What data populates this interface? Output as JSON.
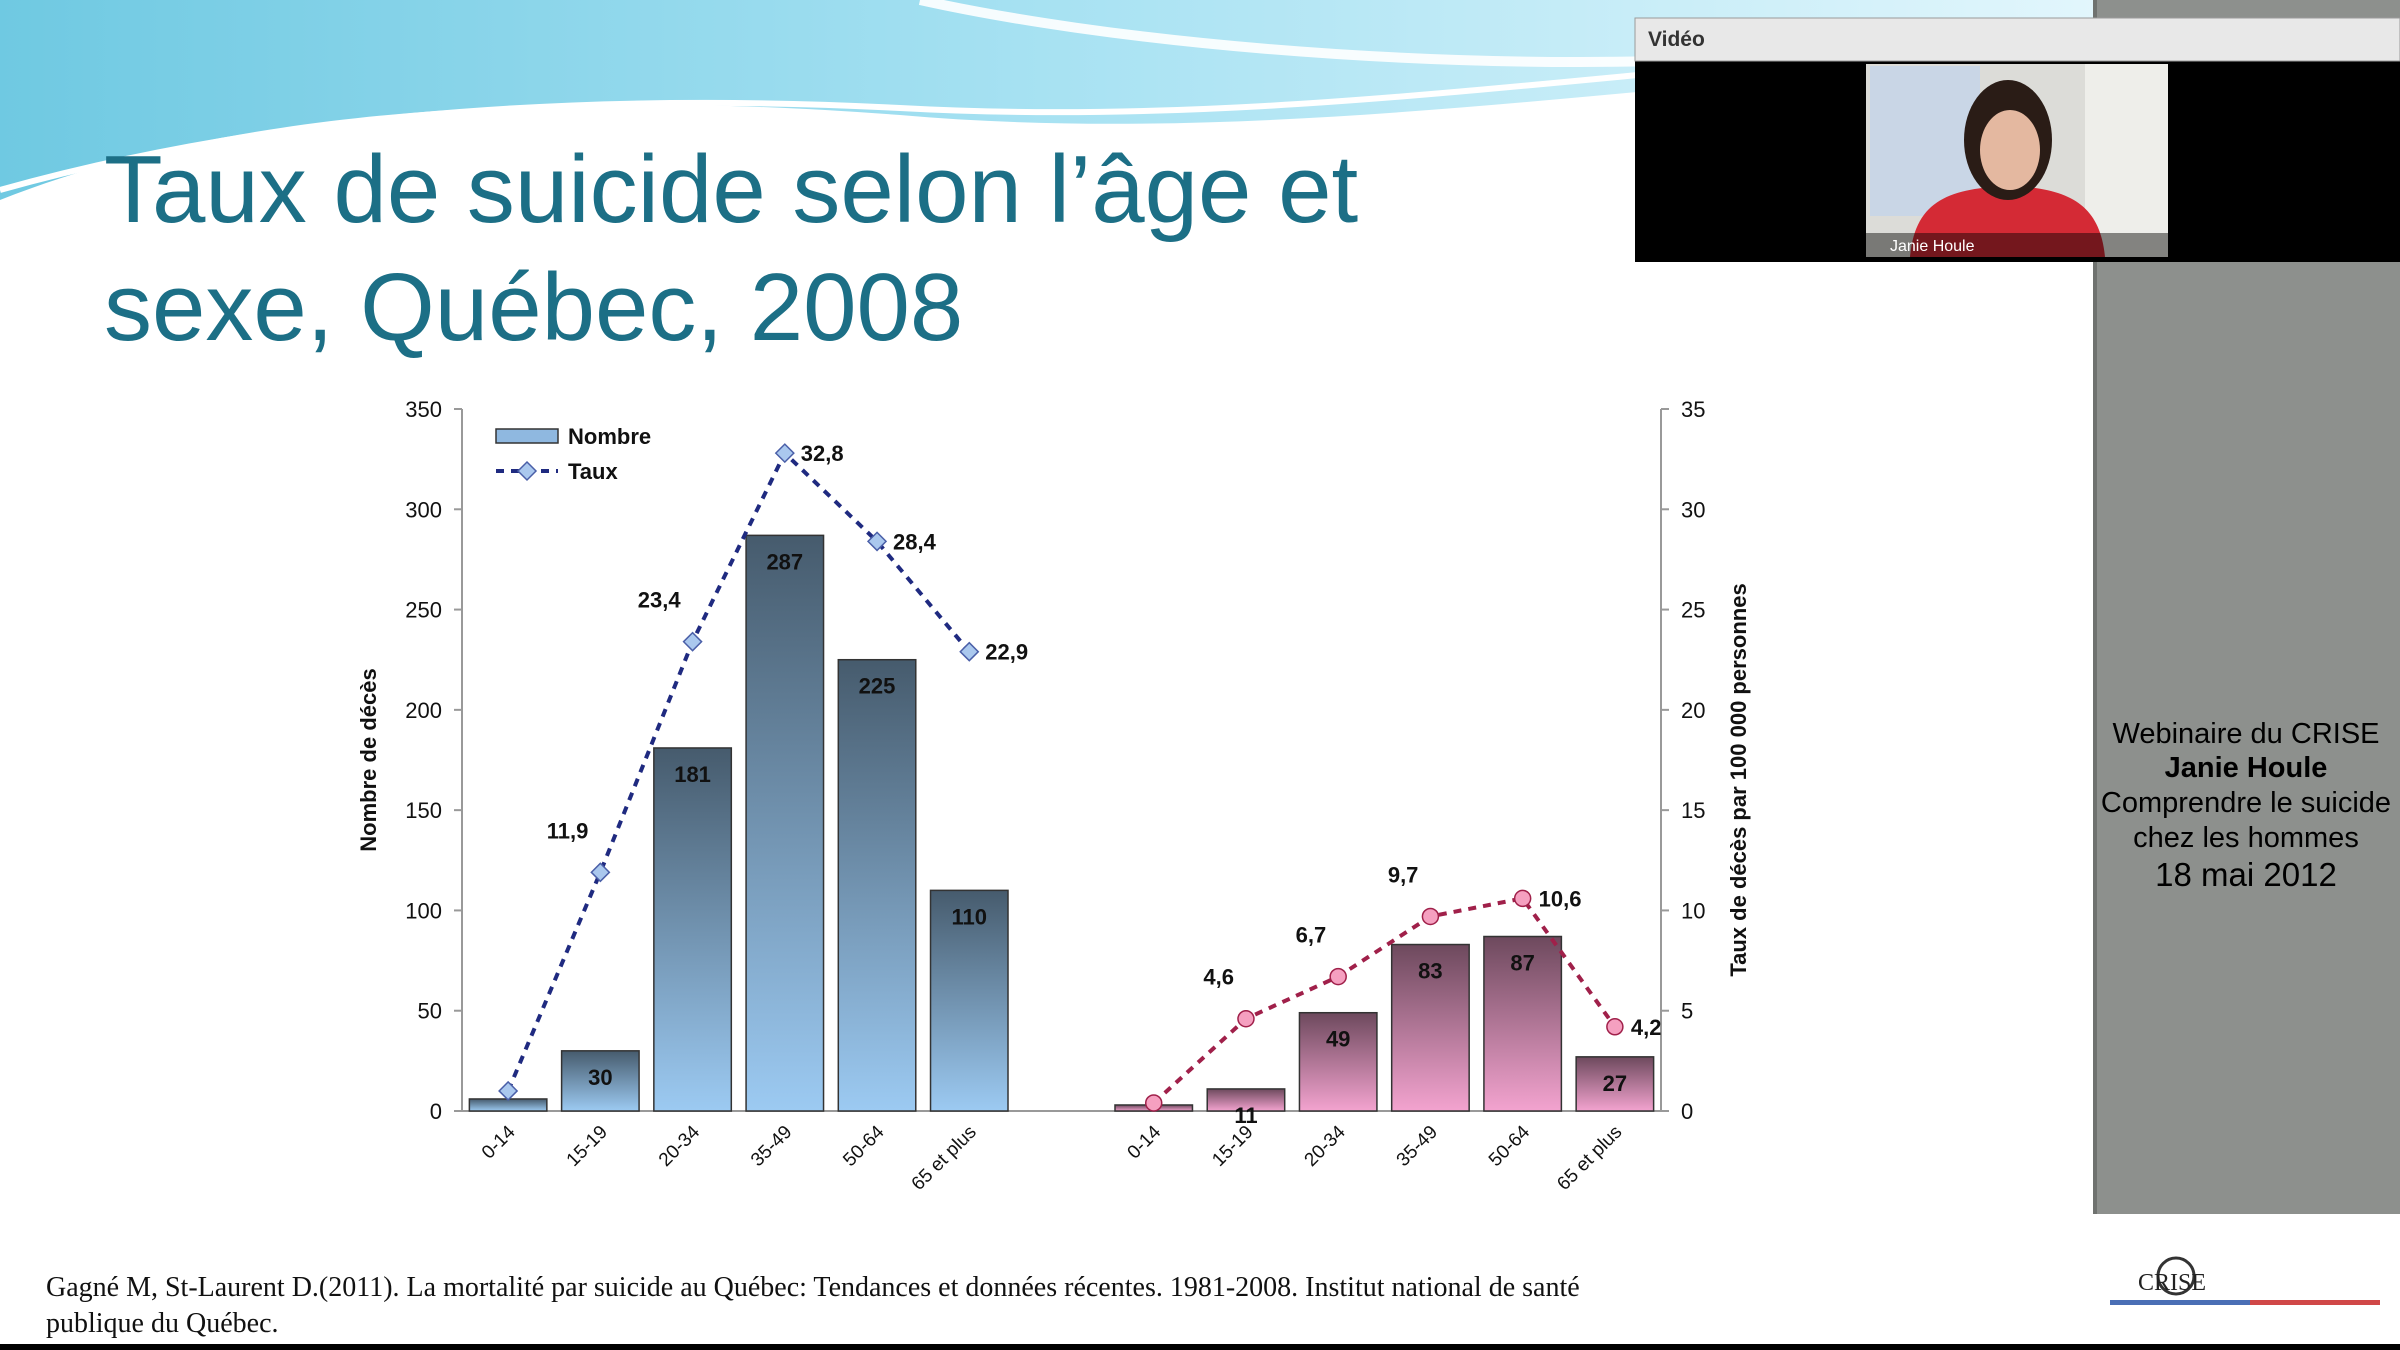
{
  "slide": {
    "title_lines": [
      "Taux de suicide selon l’âge et",
      "sexe, Québec, 2008"
    ],
    "citation_lines": [
      "Gagné M, St-Laurent D.(2011). La mortalité par suicide au Québec: Tendances et données récentes. 1981-2008. Institut national de santé",
      "publique du Québec."
    ]
  },
  "chart_data": {
    "type": "bar_line",
    "categories": [
      "0-14",
      "15-19",
      "20-34",
      "35-49",
      "50-64",
      "65 et plus",
      null,
      "0-14",
      "15-19",
      "20-34",
      "35-49",
      "50-64",
      "65 et plus"
    ],
    "ylabel": "Nombre de décès",
    "y2label": "Taux de décès par 100 000 personnes",
    "ylim": [
      0,
      350
    ],
    "yticks": [
      0,
      50,
      100,
      150,
      200,
      250,
      300,
      350
    ],
    "y2lim": [
      0,
      35
    ],
    "y2ticks": [
      0,
      5,
      10,
      15,
      20,
      25,
      30,
      35
    ],
    "legend": "top-left",
    "series": [
      {
        "name": "Nombre",
        "type": "bar",
        "color": "#8fb8e0",
        "colors": [
          "#9ccaf2",
          "#9ccaf2",
          "#9ccaf2",
          "#9ccaf2",
          "#9ccaf2",
          "#9ccaf2",
          null,
          "#f3a3cf",
          "#f3a3cf",
          "#f3a3cf",
          "#f3a3cf",
          "#f3a3cf",
          "#f3a3cf"
        ],
        "values": [
          6,
          30,
          181,
          287,
          225,
          110,
          null,
          3,
          11,
          49,
          83,
          87,
          27
        ],
        "value_labels": [
          null,
          "30",
          "181",
          "287",
          "225",
          "110",
          null,
          null,
          "11",
          "49",
          "83",
          "87",
          "27"
        ]
      },
      {
        "name": "Taux",
        "type": "line",
        "axis": "y2",
        "color": "#1f2a80",
        "colors": [
          "#1f2a80",
          "#1f2a80",
          "#1f2a80",
          "#1f2a80",
          "#1f2a80",
          "#1f2a80",
          null,
          "#a0204a",
          "#a0204a",
          "#a0204a",
          "#a0204a",
          "#a0204a",
          "#a0204a"
        ],
        "marker_colors": [
          "#aac8ee",
          "#aac8ee",
          "#aac8ee",
          "#aac8ee",
          "#aac8ee",
          "#aac8ee",
          null,
          "#f5a0c0",
          "#f5a0c0",
          "#f5a0c0",
          "#f5a0c0",
          "#f5a0c0",
          "#f5a0c0"
        ],
        "markers": [
          "diamond",
          "diamond",
          "diamond",
          "diamond",
          "diamond",
          "diamond",
          null,
          "circle",
          "circle",
          "circle",
          "circle",
          "circle",
          "circle"
        ],
        "values": [
          1.0,
          11.9,
          23.4,
          32.8,
          28.4,
          22.9,
          null,
          0.4,
          4.6,
          6.7,
          9.7,
          10.6,
          4.2
        ],
        "value_labels": [
          null,
          "11,9",
          "23,4",
          "32,8",
          "28,4",
          "22,9",
          null,
          null,
          "4,6",
          "6,7",
          "9,7",
          "10,6",
          "4,2"
        ]
      }
    ]
  },
  "video_panel": {
    "title": "Vidéo",
    "speaker_name": "Janie Houle"
  },
  "sidebar": {
    "lines": [
      "Webinaire du CRISE",
      "Janie Houle",
      "Comprendre le suicide",
      "chez les hommes",
      "18 mai 2012"
    ]
  },
  "logo": {
    "text": "CRISE"
  }
}
